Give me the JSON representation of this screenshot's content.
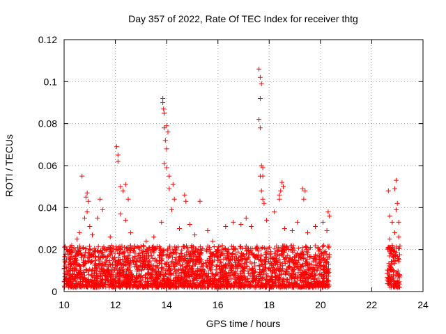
{
  "chart_data": {
    "type": "scatter",
    "title": "Day 357 of 2022, Rate Of TEC Index for receiver thtg",
    "xlabel": "GPS time / hours",
    "ylabel": "ROTI / TECUs",
    "xlim": [
      10,
      24
    ],
    "ylim": [
      0,
      0.12
    ],
    "x_ticks": [
      "10",
      "12",
      "14",
      "16",
      "18",
      "20",
      "22",
      "24"
    ],
    "y_ticks": [
      "0",
      "0.02",
      "0.04",
      "0.06",
      "0.08",
      "0.1",
      "0.12"
    ],
    "grid": true,
    "marker": "+",
    "color": "#ff0000",
    "series": [
      {
        "name": "ROTI",
        "points": [
          [
            10.7,
            0.055
          ],
          [
            10.9,
            0.047
          ],
          [
            10.85,
            0.045
          ],
          [
            10.95,
            0.043
          ],
          [
            11.4,
            0.044
          ],
          [
            12.05,
            0.069
          ],
          [
            12.1,
            0.065
          ],
          [
            12.1,
            0.062
          ],
          [
            12.2,
            0.05
          ],
          [
            12.4,
            0.051
          ],
          [
            12.3,
            0.048
          ],
          [
            12.5,
            0.044
          ],
          [
            13.85,
            0.092
          ],
          [
            13.85,
            0.09
          ],
          [
            13.88,
            0.087
          ],
          [
            13.9,
            0.085
          ],
          [
            13.9,
            0.078
          ],
          [
            14.0,
            0.079
          ],
          [
            14.05,
            0.076
          ],
          [
            13.95,
            0.072
          ],
          [
            14.0,
            0.068
          ],
          [
            13.9,
            0.061
          ],
          [
            14.0,
            0.059
          ],
          [
            14.1,
            0.055
          ],
          [
            14.1,
            0.049
          ],
          [
            14.25,
            0.051
          ],
          [
            14.3,
            0.044
          ],
          [
            14.7,
            0.046
          ],
          [
            14.75,
            0.043
          ],
          [
            15.3,
            0.043
          ],
          [
            17.6,
            0.106
          ],
          [
            17.65,
            0.102
          ],
          [
            17.7,
            0.099
          ],
          [
            17.65,
            0.092
          ],
          [
            17.6,
            0.082
          ],
          [
            17.65,
            0.078
          ],
          [
            17.7,
            0.06
          ],
          [
            17.75,
            0.059
          ],
          [
            17.65,
            0.055
          ],
          [
            17.75,
            0.055
          ],
          [
            17.7,
            0.048
          ],
          [
            17.75,
            0.044
          ],
          [
            17.8,
            0.042
          ],
          [
            18.5,
            0.052
          ],
          [
            18.55,
            0.05
          ],
          [
            18.45,
            0.048
          ],
          [
            18.4,
            0.046
          ],
          [
            18.4,
            0.044
          ],
          [
            19.3,
            0.049
          ],
          [
            19.4,
            0.048
          ],
          [
            19.35,
            0.044
          ],
          [
            20.3,
            0.038
          ],
          [
            20.35,
            0.036
          ],
          [
            22.65,
            0.048
          ],
          [
            22.95,
            0.053
          ],
          [
            22.9,
            0.049
          ],
          [
            23.0,
            0.042
          ],
          [
            22.95,
            0.039
          ],
          [
            22.7,
            0.036
          ],
          [
            23.05,
            0.033
          ],
          [
            22.8,
            0.033
          ],
          [
            10.3,
            0.022
          ],
          [
            10.5,
            0.025
          ],
          [
            10.6,
            0.028
          ],
          [
            10.8,
            0.035
          ],
          [
            10.9,
            0.038
          ],
          [
            11.0,
            0.031
          ],
          [
            11.1,
            0.027
          ],
          [
            11.3,
            0.035
          ],
          [
            11.5,
            0.039
          ],
          [
            11.8,
            0.026
          ],
          [
            12.2,
            0.037
          ],
          [
            12.4,
            0.034
          ],
          [
            12.6,
            0.028
          ],
          [
            12.9,
            0.021
          ],
          [
            13.2,
            0.024
          ],
          [
            13.5,
            0.026
          ],
          [
            13.8,
            0.033
          ],
          [
            14.2,
            0.039
          ],
          [
            14.5,
            0.03
          ],
          [
            14.9,
            0.032
          ],
          [
            15.1,
            0.027
          ],
          [
            15.6,
            0.029
          ],
          [
            15.8,
            0.024
          ],
          [
            16.3,
            0.031
          ],
          [
            16.6,
            0.033
          ],
          [
            16.9,
            0.032
          ],
          [
            17.1,
            0.035
          ],
          [
            17.3,
            0.031
          ],
          [
            17.9,
            0.034
          ],
          [
            18.2,
            0.038
          ],
          [
            18.6,
            0.03
          ],
          [
            18.9,
            0.029
          ],
          [
            19.1,
            0.033
          ],
          [
            19.5,
            0.028
          ],
          [
            19.8,
            0.031
          ],
          [
            20.1,
            0.033
          ],
          [
            20.25,
            0.029
          ],
          [
            22.7,
            0.025
          ],
          [
            22.8,
            0.022
          ],
          [
            22.9,
            0.028
          ],
          [
            23.05,
            0.026
          ],
          [
            22.75,
            0.018
          ]
        ]
      }
    ],
    "dense_band": {
      "segments": [
        {
          "x_range": [
            10.0,
            20.35
          ],
          "y_range": [
            0.002,
            0.022
          ]
        },
        {
          "x_range": [
            22.6,
            23.1
          ],
          "y_range": [
            0.002,
            0.022
          ]
        }
      ]
    }
  }
}
